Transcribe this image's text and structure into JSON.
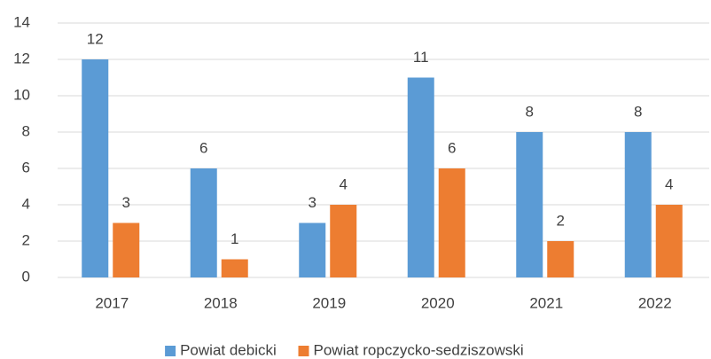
{
  "chart_data": {
    "type": "bar",
    "categories": [
      "2017",
      "2018",
      "2019",
      "2020",
      "2021",
      "2022"
    ],
    "series": [
      {
        "name": "Powiat debicki",
        "color": "#5b9bd5",
        "values": [
          12,
          6,
          3,
          11,
          8,
          8
        ]
      },
      {
        "name": "Powiat ropczycko-sedziszowski",
        "color": "#ed7d31",
        "values": [
          3,
          1,
          4,
          6,
          2,
          4
        ]
      }
    ],
    "ylim": [
      0,
      14
    ],
    "yticks": [
      0,
      2,
      4,
      6,
      8,
      10,
      12,
      14
    ],
    "grid": true,
    "legend": "bottom"
  }
}
